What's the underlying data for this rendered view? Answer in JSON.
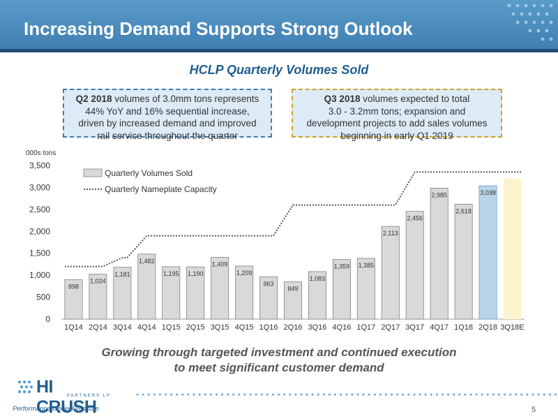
{
  "header": {
    "title": "Increasing Demand Supports Strong Outlook"
  },
  "chart_title": "HCLP Quarterly Volumes Sold",
  "callouts": {
    "left": {
      "bold": "Q2 2018",
      "text1": " volumes of 3.0mm tons represents",
      "line2": "44% YoY and 16% sequential increase,",
      "line3": "driven by increased demand and improved",
      "line4": "rail service throughout the quarter"
    },
    "right": {
      "bold": "Q3 2018",
      "text1": " volumes expected to total",
      "line2": "3.0 - 3.2mm tons; expansion and",
      "line3": "development projects to add sales volumes",
      "line4": "beginning in early Q1 2019"
    }
  },
  "unit_label": "000s tons",
  "bottom_text": {
    "line1": "Growing through targeted investment and continued execution",
    "line2": "to meet significant customer demand"
  },
  "logo": {
    "name": "HI CRUSH",
    "sub": "PARTNERS LP",
    "tagline": "Performance Under Pressure"
  },
  "page_number": "5",
  "colors": {
    "bar": "#d9d9d9",
    "bar_border": "#808080",
    "bar_q2_2018": "#b8d4e8",
    "bar_estimate": "#fbf3cc",
    "capacity_line": "#555555",
    "title_blue": "#1f5d8f"
  },
  "chart_data": {
    "type": "bar",
    "categories": [
      "1Q14",
      "2Q14",
      "3Q14",
      "4Q14",
      "1Q15",
      "2Q15",
      "3Q15",
      "4Q15",
      "1Q16",
      "2Q16",
      "3Q16",
      "4Q16",
      "1Q17",
      "2Q17",
      "3Q17",
      "4Q17",
      "1Q18",
      "2Q18",
      "3Q18E"
    ],
    "series": [
      {
        "name": "Quarterly Volumes Sold",
        "values": [
          898,
          1024,
          1181,
          1482,
          1195,
          1190,
          1409,
          1209,
          963,
          849,
          1083,
          1359,
          1385,
          2113,
          2456,
          2985,
          2618,
          3038,
          null
        ],
        "labels": [
          "898",
          "1,024",
          "1,181",
          "1,482",
          "1,195",
          "1,190",
          "1,409",
          "1,209",
          "963",
          "849",
          "1,083",
          "1,359",
          "1,385",
          "2,113",
          "2,456",
          "2,985",
          "2,618",
          "3,038",
          ""
        ]
      },
      {
        "name": "Quarterly Nameplate Capacity",
        "values": [
          1200,
          1200,
          1400,
          1900,
          1900,
          1900,
          1900,
          1900,
          1900,
          2600,
          2600,
          2600,
          2600,
          2600,
          3350,
          3350,
          3350,
          3350,
          3350
        ]
      }
    ],
    "estimate_range": [
      3000,
      3200
    ],
    "ylim": [
      0,
      3500
    ],
    "yticks": [
      0,
      500,
      1000,
      1500,
      2000,
      2500,
      3000,
      3500
    ],
    "ytick_labels": [
      "0",
      "500",
      "1,000",
      "1,500",
      "2,000",
      "2,500",
      "3,000",
      "3,500"
    ],
    "ylabel": "000s tons",
    "xlabel": "",
    "grid": false,
    "legend": "top-left"
  }
}
